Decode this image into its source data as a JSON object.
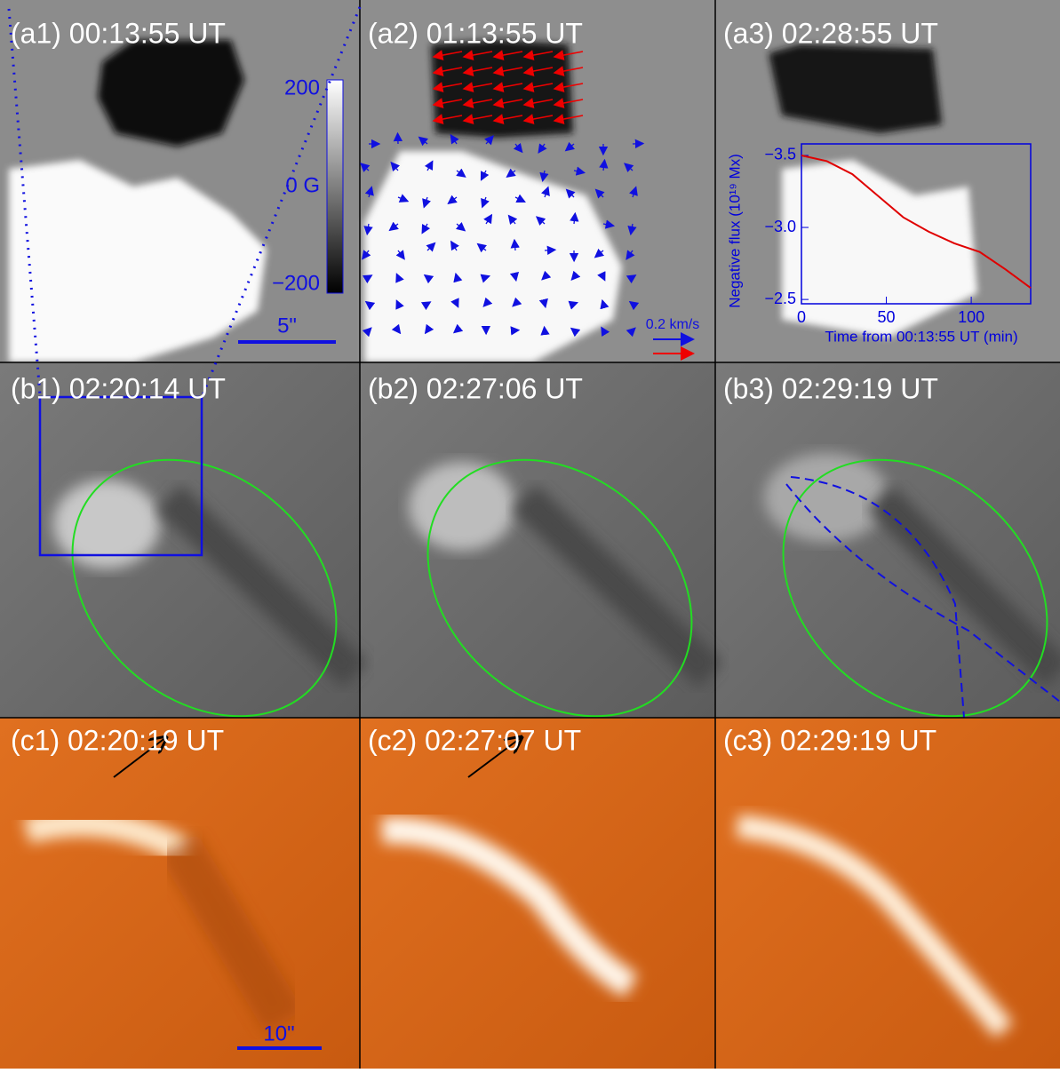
{
  "panels": [
    "(a1) 00:13:55 UT",
    "(a2) 01:13:55 UT",
    "(a3) 02:28:55 UT",
    "(b1) 02:20:14 UT",
    "(b2) 02:27:06 UT",
    "(b3) 02:29:19 UT",
    "(c1) 02:20:19 UT",
    "(c2) 02:27:07 UT",
    "(c3) 02:29:19 UT"
  ],
  "colorbar_labels": [
    "200",
    "0 G",
    "−200"
  ],
  "scale_bar_a1": "5\"",
  "velocity_scale": "0.2 km/s",
  "scale_bar_c1": "10\"",
  "chart_data": {
    "type": "line",
    "ylabel": "Negative flux (10¹⁹ Mx)",
    "xlabel": "Time from 00:13:55 UT (min)",
    "x": [
      0,
      15,
      30,
      45,
      60,
      75,
      90,
      105,
      120,
      135
    ],
    "series": [
      {
        "color": "#e00000",
        "values": [
          -3.5,
          -3.46,
          -3.37,
          -3.22,
          -3.07,
          -2.97,
          -2.89,
          -2.83,
          -2.71,
          -2.58
        ]
      }
    ],
    "xlim": [
      0,
      135
    ],
    "ylim": [
      -3.58,
      -2.47
    ],
    "y_inverted": true,
    "xticks": [
      0,
      50,
      100
    ],
    "yticks": [
      {
        "value": -3.5,
        "label": "−3.5"
      },
      {
        "value": -3.0,
        "label": "−3.0"
      },
      {
        "value": -2.5,
        "label": "−2.5"
      }
    ],
    "axis_color": "#0000dd"
  }
}
